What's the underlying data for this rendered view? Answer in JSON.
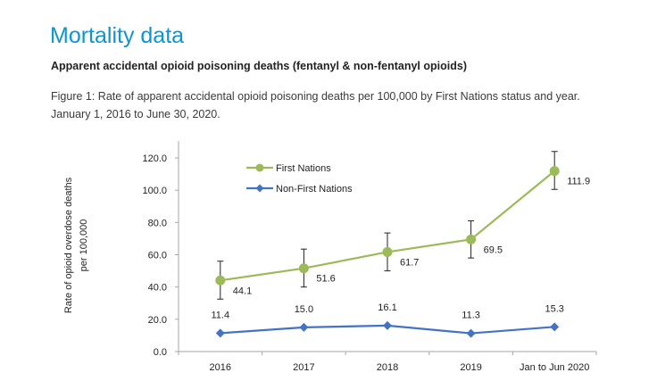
{
  "header": {
    "title": "Mortality data",
    "subtitle": "Apparent accidental opioid poisoning deaths (fentanyl & non-fentanyl opioids)",
    "caption": "Figure 1: Rate of apparent accidental opioid poisoning deaths per 100,000 by First Nations status and year. January 1, 2016 to June 30, 2020."
  },
  "chart_data": {
    "type": "line",
    "categories": [
      "2016",
      "2017",
      "2018",
      "2019",
      "Jan to Jun 2020"
    ],
    "ylabel_lines": [
      "Rate of opioid overdose deaths",
      "per 100,000"
    ],
    "xlabel": "",
    "ylim": [
      0,
      120
    ],
    "yticks": [
      "0.0",
      "20.0",
      "40.0",
      "60.0",
      "80.0",
      "100.0",
      "120.0"
    ],
    "grid": false,
    "legend_position": "top-left",
    "series": [
      {
        "name": "First Nations",
        "color": "#9bbb59",
        "marker": "circle",
        "values": [
          44.1,
          51.6,
          61.7,
          69.5,
          111.9
        ],
        "labels": [
          "44.1",
          "51.6",
          "61.7",
          "69.5",
          "111.9"
        ],
        "error_low": [
          32.5,
          40.0,
          50.0,
          58.0,
          100.5
        ],
        "error_high": [
          56.0,
          63.5,
          73.5,
          81.0,
          124.0
        ]
      },
      {
        "name": "Non-First Nations",
        "color": "#4472c4",
        "marker": "diamond",
        "values": [
          11.4,
          15.0,
          16.1,
          11.3,
          15.3
        ],
        "labels": [
          "11.4",
          "15.0",
          "16.1",
          "11.3",
          "15.3"
        ]
      }
    ]
  }
}
